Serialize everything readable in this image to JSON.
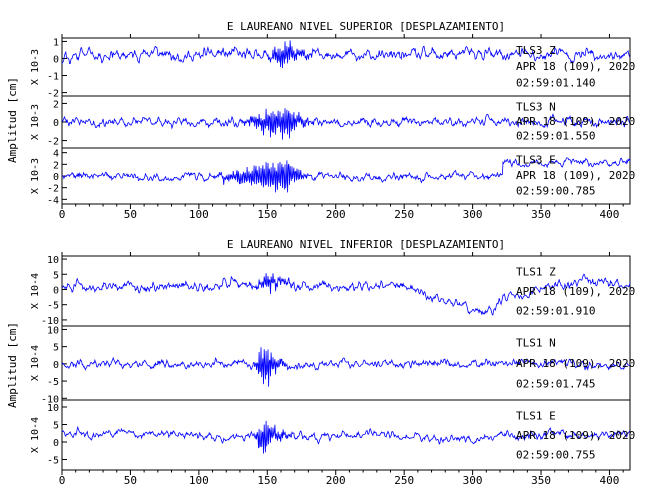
{
  "colors": {
    "trace": "#0000ff",
    "axis": "#000000",
    "text": "#000000"
  },
  "chart_data": [
    {
      "type": "line",
      "title": "E LAUREANO NIVEL SUPERIOR [DESPLAZAMIENTO]",
      "ylabel": "Amplitud [cm]",
      "xlim": [
        0,
        415
      ],
      "xticks": [
        0,
        50,
        100,
        150,
        200,
        250,
        300,
        350,
        400
      ],
      "grid": false,
      "panels": [
        {
          "name": "TLS3 Z",
          "station_label": "TLS3 Z",
          "multiplier": "X 10-3",
          "yticks": [
            "1",
            "0",
            "-1",
            "-2"
          ],
          "ylim": [
            -2.2,
            1.2
          ],
          "date_label": "APR 18 (109), 2020",
          "time_label": "02:59:01.140",
          "seed": 11,
          "noise": 0.55,
          "drift": 0.35,
          "offset": 0.2,
          "burst": {
            "start": 150,
            "peak": 163,
            "end": 185,
            "amp": 0.9
          },
          "step": null
        },
        {
          "name": "TLS3 N",
          "station_label": "TLS3 N",
          "multiplier": "X 10-3",
          "yticks": [
            "2",
            "0",
            "-2"
          ],
          "ylim": [
            -2.8,
            2.8
          ],
          "date_label": "APR 18 (109), 2020",
          "time_label": "02:59:01.550",
          "seed": 23,
          "noise": 0.8,
          "drift": 0.1,
          "offset": 0,
          "burst": {
            "start": 130,
            "peak": 165,
            "end": 185,
            "amp": 2.2
          },
          "step": null
        },
        {
          "name": "TLS3 E",
          "station_label": "TLS3 E",
          "multiplier": "X 10-3",
          "yticks": [
            "4",
            "2",
            "0",
            "-2",
            "-4"
          ],
          "ylim": [
            -4.8,
            4.8
          ],
          "date_label": "APR 18 (109), 2020",
          "time_label": "02:59:00.785",
          "seed": 37,
          "noise": 1.1,
          "drift": 0.6,
          "offset": 0,
          "burst": {
            "start": 110,
            "peak": 165,
            "end": 180,
            "amp": 3.5
          },
          "step": {
            "at": 322,
            "amount": 2.2
          }
        }
      ]
    },
    {
      "type": "line",
      "title": "E LAUREANO NIVEL INFERIOR [DESPLAZAMIENTO]",
      "ylabel": "Amplitud [cm]",
      "xlim": [
        0,
        415
      ],
      "xticks": [
        0,
        50,
        100,
        150,
        200,
        250,
        300,
        350,
        400
      ],
      "grid": false,
      "panels": [
        {
          "name": "TLS1 Z",
          "station_label": "TLS1 Z",
          "multiplier": "X 10-4",
          "yticks": [
            "10",
            "5",
            "0",
            "-5",
            "-10"
          ],
          "ylim": [
            -12,
            11
          ],
          "date_label": "APR 18 (109), 2020",
          "time_label": "02:59:01.910",
          "seed": 51,
          "noise": 2.6,
          "drift": 3.0,
          "offset": 1,
          "burst": {
            "start": 140,
            "peak": 150,
            "end": 175,
            "amp": 3.0
          },
          "dip": {
            "at": 305,
            "width": 30,
            "amount": -8
          },
          "step": null
        },
        {
          "name": "TLS1 N",
          "station_label": "TLS1 N",
          "multiplier": "X 10-4",
          "yticks": [
            "10",
            "5",
            "0",
            "-5",
            "-10"
          ],
          "ylim": [
            -10.5,
            11
          ],
          "date_label": "APR 18 (109), 2020",
          "time_label": "02:59:01.745",
          "seed": 67,
          "noise": 2.0,
          "drift": 1.3,
          "offset": 0,
          "burst": {
            "start": 140,
            "peak": 148,
            "end": 165,
            "amp": 7.5
          },
          "step": null
        },
        {
          "name": "TLS1 E",
          "station_label": "TLS1 E",
          "multiplier": "X 10-4",
          "yticks": [
            "10",
            "5",
            "0",
            "-5"
          ],
          "ylim": [
            -8,
            12
          ],
          "date_label": "APR 18 (109), 2020",
          "time_label": "02:59:00.755",
          "seed": 83,
          "noise": 2.0,
          "drift": 2.8,
          "offset": 2,
          "burst": {
            "start": 140,
            "peak": 148,
            "end": 170,
            "amp": 5.5
          },
          "step": null
        }
      ]
    }
  ]
}
